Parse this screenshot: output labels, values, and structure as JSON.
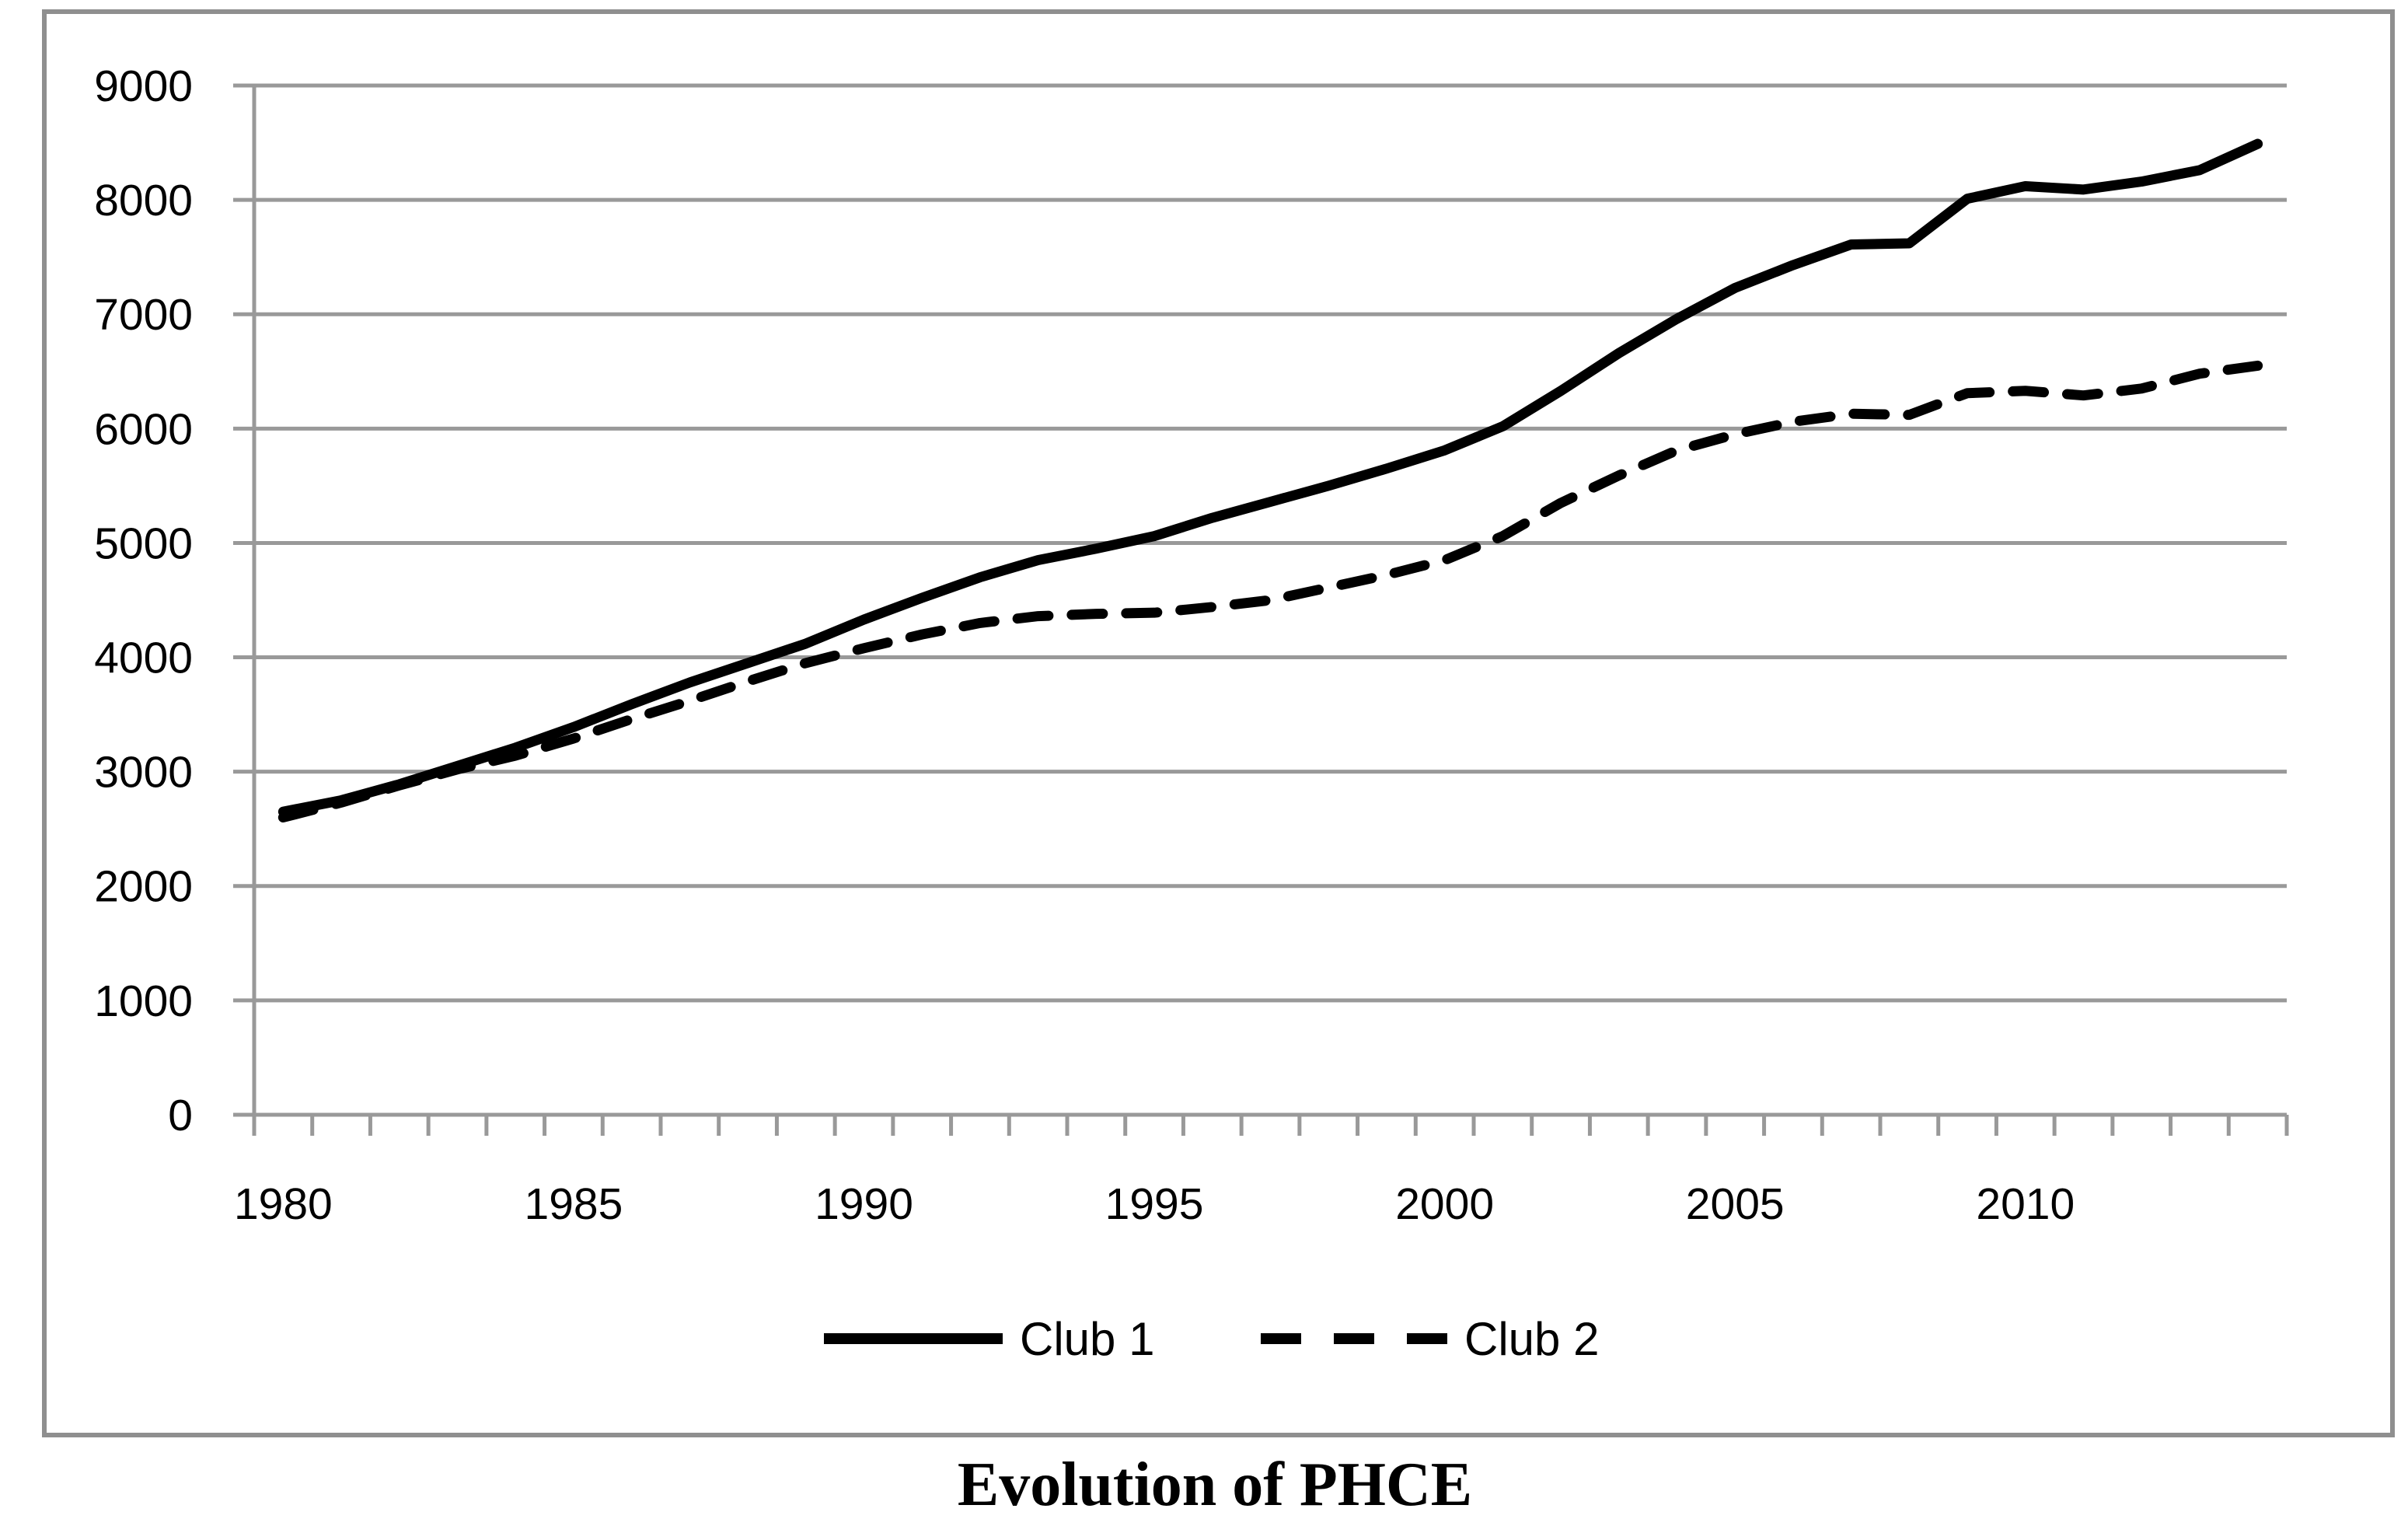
{
  "title": {
    "text": "Evolution of PHCE"
  },
  "chart_data": {
    "type": "line",
    "title": "Evolution of PHCE",
    "xlabel": "",
    "ylabel": "",
    "x": [
      1980,
      1981,
      1982,
      1983,
      1984,
      1985,
      1986,
      1987,
      1988,
      1989,
      1990,
      1991,
      1992,
      1993,
      1994,
      1995,
      1996,
      1997,
      1998,
      1999,
      2000,
      2001,
      2002,
      2003,
      2004,
      2005,
      2006,
      2007,
      2008,
      2009,
      2010,
      2011,
      2012,
      2013,
      2014
    ],
    "series": [
      {
        "name": "Club 1",
        "style": "solid",
        "values": [
          2650,
          2750,
          2890,
          3050,
          3210,
          3390,
          3590,
          3780,
          3950,
          4120,
          4330,
          4520,
          4700,
          4850,
          4950,
          5060,
          5220,
          5360,
          5500,
          5650,
          5810,
          6020,
          6330,
          6660,
          6960,
          7230,
          7430,
          7610,
          7620,
          8010,
          8120,
          8090,
          8160,
          8260,
          8490
        ]
      },
      {
        "name": "Club 2",
        "style": "dashed",
        "values": [
          2600,
          2730,
          2880,
          3020,
          3140,
          3290,
          3460,
          3620,
          3790,
          3950,
          4080,
          4200,
          4300,
          4360,
          4380,
          4390,
          4440,
          4500,
          4610,
          4720,
          4850,
          5060,
          5350,
          5590,
          5810,
          5950,
          6060,
          6130,
          6120,
          6310,
          6330,
          6290,
          6350,
          6480,
          6550
        ]
      }
    ],
    "ylim": [
      0,
      9000
    ],
    "yticks": [
      0,
      1000,
      2000,
      3000,
      4000,
      5000,
      6000,
      7000,
      8000,
      9000
    ],
    "xtick_labels": [
      "1980",
      "1985",
      "1990",
      "1995",
      "2000",
      "2005",
      "2010"
    ],
    "grid": "horizontal",
    "legend_position": "bottom",
    "colors": {
      "line": "#000000",
      "grid": "#999999",
      "axis": "#999999",
      "border": "#8f8f8f",
      "text": "#000000",
      "background": "#ffffff"
    }
  }
}
